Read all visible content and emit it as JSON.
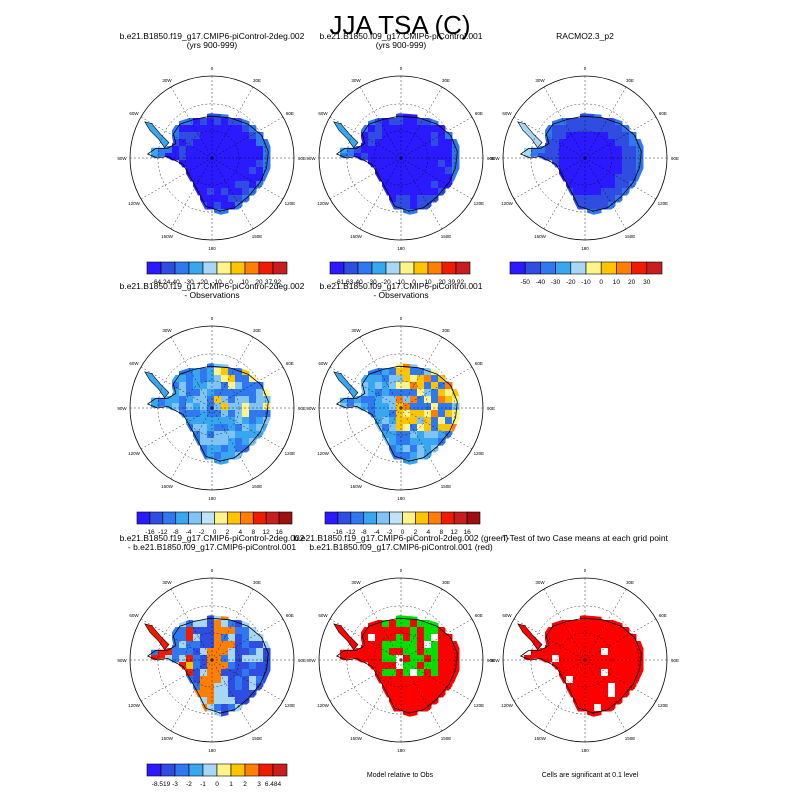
{
  "page": {
    "title": "JJA TSA (C)"
  },
  "panels": [
    {
      "id": "p1",
      "row": 0,
      "col": 0,
      "title_lines": [
        "b.e21.B1850.f19_g17.CMIP6-piControl-2deg.002",
        "(yrs 900-999)"
      ],
      "fill": "mean_case1"
    },
    {
      "id": "p2",
      "row": 0,
      "col": 1,
      "title_lines": [
        "b.e21.B1850.f09_g17.CMIP6-piControl.001",
        "(yrs 900-999)"
      ],
      "fill": "mean_case2"
    },
    {
      "id": "p3",
      "row": 0,
      "col": 2,
      "title_lines": [
        "RACMO2.3_p2"
      ],
      "fill": "mean_obs"
    },
    {
      "id": "p4",
      "row": 1,
      "col": 0,
      "title_lines": [
        "b.e21.B1850.f19_g17.CMIP6-piControl-2deg.002",
        "- Observations"
      ],
      "fill": "bias1"
    },
    {
      "id": "p5",
      "row": 1,
      "col": 1,
      "title_lines": [
        "b.e21.B1850.f09_g17.CMIP6-piControl.001",
        "- Observations"
      ],
      "fill": "bias2"
    },
    {
      "id": "p6",
      "row": 2,
      "col": 0,
      "title_lines": [
        "b.e21.B1850.f19_g17.CMIP6-piControl-2deg.002",
        "- b.e21.B1850.f09_g17.CMIP6-piControl.001"
      ],
      "fill": "diff"
    },
    {
      "id": "p7",
      "row": 2,
      "col": 1,
      "title_lines": [
        "b.e21.B1850.f19_g17.CMIP6-piControl-2deg.002 (green)",
        "b.e21.B1850.f09_g17.CMIP6-piControl.001 (red)"
      ],
      "fill": "compare"
    },
    {
      "id": "p8",
      "row": 2,
      "col": 2,
      "title_lines": [
        "T-Test of two Case means at each grid point"
      ],
      "fill": "ttest"
    }
  ],
  "map_labels": {
    "top": "0",
    "bottom": "180",
    "left": "90W",
    "right": "90E",
    "ul1": "30W",
    "ul2": "60W",
    "ur1": "30E",
    "ur2": "60E",
    "ll1": "120W",
    "ll2": "150W",
    "lr1": "120E",
    "lr2": "150E"
  },
  "colorbars": [
    {
      "id": "cb1",
      "labels": [
        "-64.24",
        "-40",
        "-30",
        "-20",
        "-10",
        "0",
        "10",
        "20",
        "37.92"
      ],
      "colors": [
        "#2b1aff",
        "#2f4de0",
        "#2f78f0",
        "#39a7f0",
        "#a8d6f5",
        "#fff48a",
        "#ffc400",
        "#ff7f00",
        "#f01c00",
        "#c81e1e"
      ]
    },
    {
      "id": "cb2",
      "labels": [
        "-61.63",
        "-40",
        "-30",
        "-20",
        "-10",
        "0",
        "10",
        "20",
        "39.92"
      ],
      "colors": [
        "#2b1aff",
        "#2f4de0",
        "#2f78f0",
        "#39a7f0",
        "#a8d6f5",
        "#fff48a",
        "#ffc400",
        "#ff7f00",
        "#f01c00",
        "#c81e1e"
      ]
    },
    {
      "id": "cb3",
      "labels": [
        "-50",
        "-40",
        "-30",
        "-20",
        "-10",
        "0",
        "10",
        "20",
        "30"
      ],
      "colors": [
        "#2b1aff",
        "#2f4de0",
        "#2f78f0",
        "#39a7f0",
        "#a8d6f5",
        "#fff48a",
        "#ffc400",
        "#ff7f00",
        "#f01c00",
        "#c81e1e"
      ]
    },
    {
      "id": "cb4",
      "labels": [
        "-16",
        "-12",
        "-8",
        "-4",
        "-2",
        "0",
        "2",
        "4",
        "8",
        "12",
        "16"
      ],
      "colors": [
        "#2b1aff",
        "#2f4de0",
        "#2f78f0",
        "#39a7f0",
        "#7fc4f5",
        "#bfe3f7",
        "#fff48a",
        "#ffc400",
        "#ff7f00",
        "#f01c00",
        "#c81e1e",
        "#9e1010"
      ]
    },
    {
      "id": "cb5",
      "labels": [
        "-16",
        "-12",
        "-8",
        "-4",
        "-2",
        "0",
        "2",
        "4",
        "8",
        "12",
        "16"
      ],
      "colors": [
        "#2b1aff",
        "#2f4de0",
        "#2f78f0",
        "#39a7f0",
        "#7fc4f5",
        "#bfe3f7",
        "#fff48a",
        "#ffc400",
        "#ff7f00",
        "#f01c00",
        "#c81e1e",
        "#9e1010"
      ]
    },
    {
      "id": "cb6",
      "labels": [
        "-8.519",
        "-3",
        "-2",
        "-1",
        "0",
        "1",
        "2",
        "3",
        "6.484"
      ],
      "colors": [
        "#2b1aff",
        "#2f4de0",
        "#2f78f0",
        "#39a7f0",
        "#a8d6f5",
        "#fff48a",
        "#ffc400",
        "#ff7f00",
        "#f01c00",
        "#c81e1e"
      ]
    }
  ],
  "notes": {
    "compare": "Model relative to Obs",
    "ttest": "Cells are significant at 0.1 level"
  },
  "chart_data": {
    "type": "heatmap",
    "title": "JJA TSA (C)",
    "projection": "south-polar-stereographic",
    "variable": "TSA",
    "season": "JJA",
    "units": "C",
    "panels": [
      {
        "title": "b.e21.B1850.f19_g17.CMIP6-piControl-2deg.002 (yrs 900-999)",
        "range": [
          -64.24,
          37.92
        ],
        "contour_levels": [
          -40,
          -30,
          -20,
          -10,
          0,
          10,
          20
        ]
      },
      {
        "title": "b.e21.B1850.f09_g17.CMIP6-piControl.001 (yrs 900-999)",
        "range": [
          -61.63,
          39.92
        ],
        "contour_levels": [
          -40,
          -30,
          -20,
          -10,
          0,
          10,
          20
        ]
      },
      {
        "title": "RACMO2.3_p2",
        "contour_levels": [
          -50,
          -40,
          -30,
          -20,
          -10,
          0,
          10,
          20,
          30
        ]
      },
      {
        "title": "b.e21.B1850.f19_g17.CMIP6-piControl-2deg.002 - Observations",
        "contour_levels": [
          -16,
          -12,
          -8,
          -4,
          -2,
          0,
          2,
          4,
          8,
          12,
          16
        ]
      },
      {
        "title": "b.e21.B1850.f09_g17.CMIP6-piControl.001 - Observations",
        "contour_levels": [
          -16,
          -12,
          -8,
          -4,
          -2,
          0,
          2,
          4,
          8,
          12,
          16
        ]
      },
      {
        "title": "b.e21.B1850.f19_g17.CMIP6-piControl-2deg.002 - b.e21.B1850.f09_g17.CMIP6-piControl.001",
        "range": [
          -8.519,
          6.484
        ],
        "contour_levels": [
          -3,
          -2,
          -1,
          0,
          1,
          2,
          3
        ]
      },
      {
        "title": "Model relative to Obs",
        "categories": [
          "b.e21.B1850.f19_g17.CMIP6-piControl-2deg.002 (green)",
          "b.e21.B1850.f09_g17.CMIP6-piControl.001 (red)"
        ]
      },
      {
        "title": "T-Test of two Case means at each grid point",
        "significance_level": 0.1
      }
    ]
  }
}
